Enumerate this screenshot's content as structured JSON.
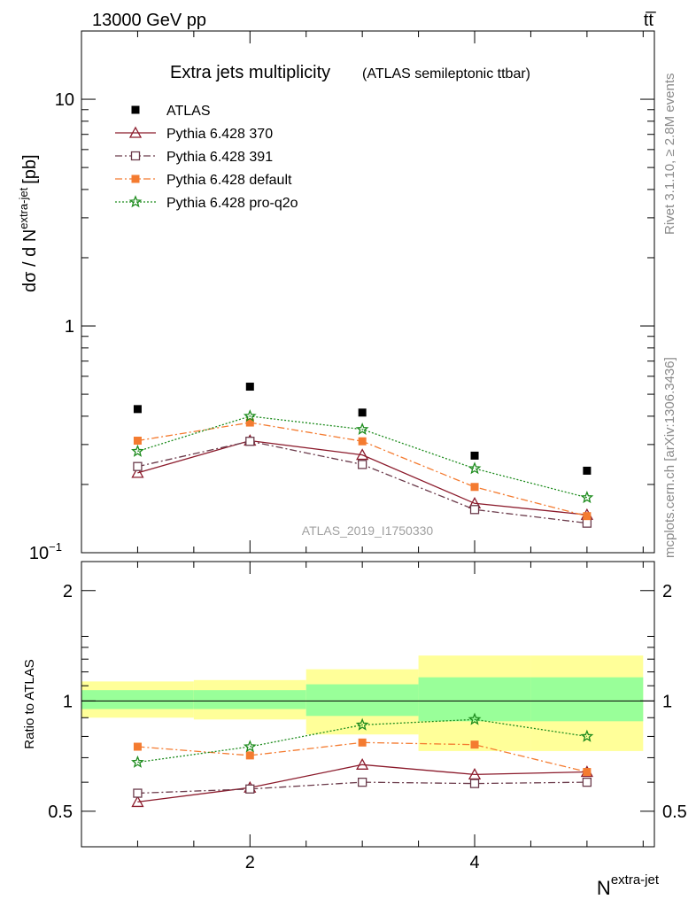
{
  "header": {
    "energy_label": "13000 GeV pp",
    "process_label": "tt̅"
  },
  "side_labels": {
    "rivet": "Rivet 3.1.10, ≥ 2.8M events",
    "mcplots": "mcplots.cern.ch [arXiv:1306.3436]"
  },
  "chart_data": [
    {
      "type": "line",
      "title": "Extra jets multiplicity",
      "subtitle": "(ATLAS semileptonic ttbar)",
      "watermark": "ATLAS_2019_I1750330",
      "ylabel": "dσ / d N",
      "ylabel_sup": "extra-jet",
      "ylabel_unit": "[pb]",
      "yscale": "log",
      "ylim": [
        0.1,
        20
      ],
      "xlim": [
        0.5,
        5.6
      ],
      "ytick_labels": [
        "10",
        "1",
        "10"
      ],
      "ytick_exp": "−1",
      "legend_position": "top-left",
      "x": [
        1,
        2,
        3,
        4,
        5
      ],
      "series": [
        {
          "name": "ATLAS",
          "values": [
            0.43,
            0.54,
            0.415,
            0.268,
            0.23
          ],
          "color": "#000000",
          "marker": "square-filled",
          "line": "none"
        },
        {
          "name": "Pythia 6.428 370",
          "values": [
            0.225,
            0.312,
            0.27,
            0.165,
            0.147
          ],
          "color": "#8B1A2B",
          "marker": "triangle-open",
          "line": "solid"
        },
        {
          "name": "Pythia 6.428 391",
          "values": [
            0.24,
            0.31,
            0.245,
            0.155,
            0.135
          ],
          "color": "#6B3B4B",
          "marker": "square-open",
          "line": "dashdot"
        },
        {
          "name": "Pythia 6.428 default",
          "values": [
            0.312,
            0.375,
            0.31,
            0.195,
            0.145
          ],
          "color": "#F47B30",
          "marker": "square-filled",
          "line": "dashdot"
        },
        {
          "name": "Pythia 6.428 pro-q2o",
          "values": [
            0.28,
            0.4,
            0.35,
            0.235,
            0.175
          ],
          "color": "#1E8C1E",
          "marker": "star-open",
          "line": "dotted"
        }
      ]
    },
    {
      "type": "line",
      "ylabel": "Ratio to ATLAS",
      "xlabel": "N",
      "xlabel_sup": "extra-jet",
      "ylim": [
        0.4,
        2.4
      ],
      "xlim": [
        0.5,
        5.6
      ],
      "ytick_labels": [
        "0.5",
        "1",
        "2"
      ],
      "xtick_labels": [
        "2",
        "4"
      ],
      "bins": [
        {
          "x_lo": 0.5,
          "x_hi": 1.5,
          "stat_lo": 0.95,
          "stat_hi": 1.07,
          "tot_lo": 0.9,
          "tot_hi": 1.13
        },
        {
          "x_lo": 1.5,
          "x_hi": 2.5,
          "stat_lo": 0.95,
          "stat_hi": 1.07,
          "tot_lo": 0.89,
          "tot_hi": 1.14
        },
        {
          "x_lo": 2.5,
          "x_hi": 3.5,
          "stat_lo": 0.91,
          "stat_hi": 1.11,
          "tot_lo": 0.81,
          "tot_hi": 1.22
        },
        {
          "x_lo": 3.5,
          "x_hi": 4.5,
          "stat_lo": 0.88,
          "stat_hi": 1.16,
          "tot_lo": 0.73,
          "tot_hi": 1.33
        },
        {
          "x_lo": 4.5,
          "x_hi": 5.5,
          "stat_lo": 0.88,
          "stat_hi": 1.16,
          "tot_lo": 0.73,
          "tot_hi": 1.33
        }
      ],
      "x": [
        1,
        2,
        3,
        4,
        5
      ],
      "series": [
        {
          "name": "Pythia 6.428 370",
          "values": [
            0.53,
            0.58,
            0.67,
            0.63,
            0.64
          ],
          "color": "#8B1A2B",
          "marker": "triangle-open",
          "line": "solid"
        },
        {
          "name": "Pythia 6.428 391",
          "values": [
            0.56,
            0.575,
            0.6,
            0.595,
            0.6
          ],
          "color": "#6B3B4B",
          "marker": "square-open",
          "line": "dashdot"
        },
        {
          "name": "Pythia 6.428 default",
          "values": [
            0.75,
            0.71,
            0.77,
            0.76,
            0.64
          ],
          "color": "#F47B30",
          "marker": "square-filled",
          "line": "dashdot"
        },
        {
          "name": "Pythia 6.428 pro-q2o",
          "values": [
            0.68,
            0.75,
            0.86,
            0.89,
            0.8
          ],
          "color": "#1E8C1E",
          "marker": "star-open",
          "line": "dotted"
        }
      ]
    }
  ]
}
